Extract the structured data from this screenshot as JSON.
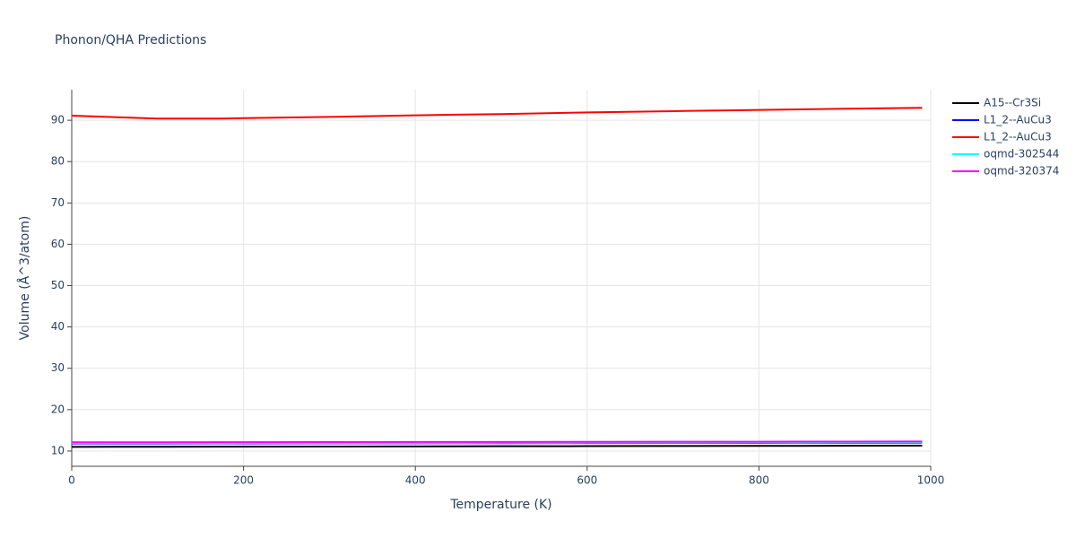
{
  "chart_data": {
    "type": "line",
    "title": "Phonon/QHA Predictions",
    "x_label": "Temperature (K)",
    "y_label": "Volume (Å^3/atom)",
    "x": [
      0,
      100,
      170,
      200,
      300,
      400,
      500,
      600,
      700,
      800,
      900,
      990
    ],
    "series": [
      {
        "name": "A15--Cr3Si",
        "color": "#000000",
        "values": [
          11.0,
          11.02,
          11.04,
          11.05,
          11.08,
          11.11,
          11.14,
          11.17,
          11.2,
          11.23,
          11.26,
          11.3
        ]
      },
      {
        "name": "L1_2--AuCu3",
        "color": "#0000ff",
        "values": [
          11.8,
          11.81,
          11.82,
          11.83,
          11.85,
          11.87,
          11.89,
          11.91,
          11.93,
          11.95,
          11.97,
          12.0
        ]
      },
      {
        "name": "L1_2--AuCu3",
        "color": "#ff0000",
        "values": [
          91.1,
          90.4,
          90.4,
          90.5,
          90.8,
          91.2,
          91.5,
          91.9,
          92.2,
          92.5,
          92.8,
          93.0
        ]
      },
      {
        "name": "oqmd-302544",
        "color": "#00ffff",
        "values": [
          11.9,
          11.91,
          11.92,
          11.93,
          11.95,
          11.97,
          11.99,
          12.01,
          12.03,
          12.05,
          12.07,
          12.1
        ]
      },
      {
        "name": "oqmd-320374",
        "color": "#ff00ff",
        "values": [
          12.1,
          12.11,
          12.12,
          12.13,
          12.15,
          12.17,
          12.19,
          12.21,
          12.23,
          12.25,
          12.27,
          12.3
        ]
      }
    ],
    "xlim": [
      0,
      1000
    ],
    "xticks": [
      0,
      200,
      400,
      600,
      800,
      1000
    ],
    "ylim": [
      6.3,
      97.4
    ],
    "yticks": [
      10,
      20,
      30,
      40,
      50,
      60,
      70,
      80,
      90
    ],
    "grid": true,
    "legend": "right"
  }
}
